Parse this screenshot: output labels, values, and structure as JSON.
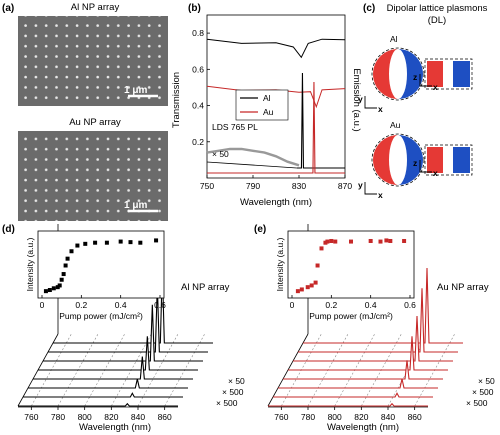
{
  "panels": {
    "a": {
      "label": "(a)",
      "al_title": "Al NP array",
      "au_title": "Au NP array",
      "scalebar_top": "1 μm",
      "scalebar_bottom": "1 μm"
    },
    "b": {
      "label": "(b)",
      "ylabel_left": "Transmission",
      "ylabel_right": "Emission (a.u.)",
      "xlabel": "Wavelength (nm)",
      "annotation_pl": "LDS 765 PL",
      "annotation_scale": "× 50",
      "legend": [
        "Al",
        "Au"
      ],
      "colors": {
        "al": "#000000",
        "au": "#c62828",
        "pl": "#999999"
      }
    },
    "c": {
      "label": "(c)",
      "title_line1": "Dipolar lattice plasmons",
      "title_line2": "(DL)",
      "al_label": "Al",
      "au_label": "Au",
      "colors": {
        "red": "#e53935",
        "blue": "#1e4fc2"
      }
    },
    "d": {
      "label": "(d)",
      "array_label": "Al NP array",
      "inset_ylabel": "Intensity (a.u.)",
      "inset_xlabel": "Pump power (mJ/cm²)",
      "scale_labels": [
        "× 50",
        "× 500",
        "× 500"
      ],
      "xlabel": "Wavelength (nm)",
      "color": "#000000"
    },
    "e": {
      "label": "(e)",
      "array_label": "Au NP array",
      "inset_ylabel": "Intensity (a.u.)",
      "inset_xlabel": "Pump power (mJ/cm²)",
      "scale_labels": [
        "× 50",
        "× 500",
        "× 500"
      ],
      "xlabel": "Wavelength (nm)",
      "color": "#c62828"
    }
  },
  "chart_data": [
    {
      "id": "b",
      "type": "line",
      "x_ticks": [
        "750",
        "790",
        "830",
        "870"
      ],
      "y_ticks": [
        "0.2",
        "0.4",
        "0.6",
        "0.8"
      ],
      "xlim": [
        750,
        870
      ],
      "ylim": [
        0,
        0.9
      ],
      "series": [
        {
          "name": "Al",
          "x": [
            750,
            780,
            810,
            825,
            832,
            838,
            850,
            870
          ],
          "y": [
            0.76,
            0.75,
            0.74,
            0.73,
            0.66,
            0.75,
            0.76,
            0.77
          ]
        },
        {
          "name": "Au",
          "x": [
            750,
            780,
            810,
            830,
            840,
            845,
            850,
            870
          ],
          "y": [
            0.5,
            0.49,
            0.48,
            0.48,
            0.47,
            0.4,
            0.48,
            0.5
          ]
        },
        {
          "x": [
            750,
            760,
            770,
            780,
            790,
            800,
            810,
            820,
            830
          ],
          "y": [
            0.14,
            0.15,
            0.16,
            0.16,
            0.15,
            0.14,
            0.12,
            0.09,
            0.07
          ]
        }
      ],
      "emission_peaks_nm": {
        "Al": 833,
        "Au": 843
      }
    },
    {
      "id": "d_inset",
      "type": "scatter",
      "x_ticks": [
        "0",
        "0.2",
        "0.4",
        "0.6"
      ],
      "xlim": [
        0,
        0.6
      ],
      "x": [
        0.02,
        0.04,
        0.06,
        0.08,
        0.09,
        0.1,
        0.11,
        0.12,
        0.13,
        0.15,
        0.18,
        0.22,
        0.27,
        0.33,
        0.4,
        0.45,
        0.5,
        0.58
      ],
      "y": [
        0.05,
        0.07,
        0.1,
        0.12,
        0.15,
        0.25,
        0.35,
        0.5,
        0.62,
        0.75,
        0.85,
        0.88,
        0.9,
        0.9,
        0.92,
        0.91,
        0.9,
        0.94
      ]
    },
    {
      "id": "e_inset",
      "type": "scatter",
      "x_ticks": [
        "0",
        "0.2",
        "0.4",
        "0.6"
      ],
      "xlim": [
        0,
        0.6
      ],
      "x": [
        0.03,
        0.05,
        0.08,
        0.1,
        0.12,
        0.13,
        0.15,
        0.17,
        0.18,
        0.2,
        0.22,
        0.3,
        0.4,
        0.45,
        0.48,
        0.5,
        0.57
      ],
      "y": [
        0.05,
        0.08,
        0.12,
        0.15,
        0.2,
        0.5,
        0.8,
        0.9,
        0.92,
        0.93,
        0.92,
        0.92,
        0.93,
        0.92,
        0.94,
        0.93,
        0.93
      ]
    },
    {
      "id": "d_waterfall",
      "type": "line",
      "x_ticks": [
        "760",
        "780",
        "800",
        "820",
        "840",
        "860"
      ],
      "xlim": [
        750,
        870
      ],
      "peak_nm": 832,
      "peak_heights": [
        1.0,
        0.9,
        0.75,
        0.45,
        0.3,
        0.12,
        0.05,
        0.03
      ]
    },
    {
      "id": "e_waterfall",
      "type": "line",
      "x_ticks": [
        "760",
        "780",
        "800",
        "820",
        "840",
        "860"
      ],
      "xlim": [
        750,
        870
      ],
      "peak_nm": 843,
      "peak_heights": [
        1.0,
        0.85,
        0.6,
        0.45,
        0.25,
        0.12,
        0.05,
        0.03
      ]
    }
  ]
}
